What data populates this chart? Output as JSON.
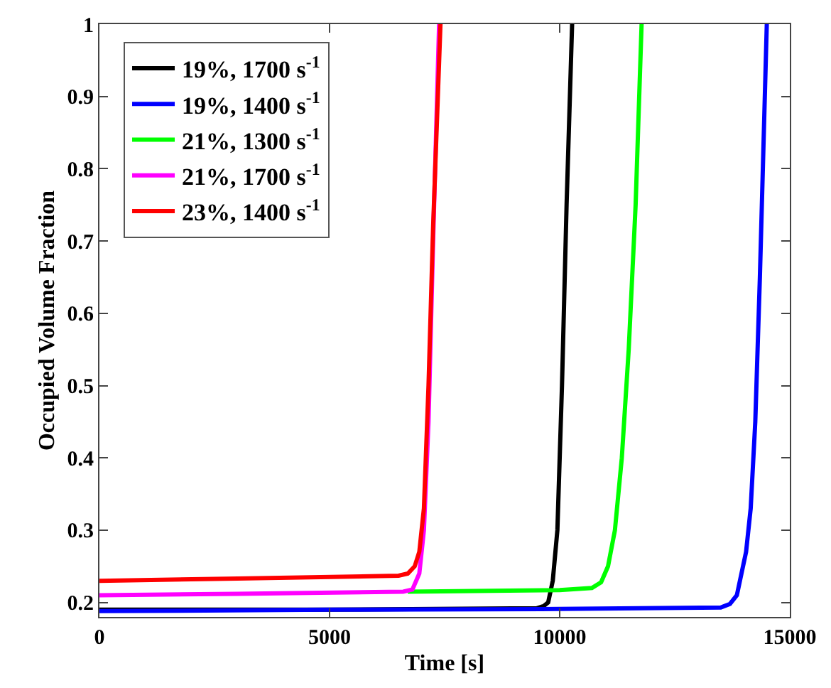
{
  "chart_data": {
    "type": "line",
    "xlabel": "Time [s]",
    "ylabel": "Occupied Volume Fraction",
    "xlim": [
      0,
      15000
    ],
    "xticks": [
      0,
      5000,
      10000,
      15000
    ],
    "ylim": [
      0.18,
      1
    ],
    "yticks": [
      0.2,
      0.3,
      0.4,
      0.5,
      0.6,
      0.7,
      0.8,
      0.9,
      1
    ],
    "legend": "top left",
    "line_style": "solid",
    "series": [
      {
        "name": "19%, 1700 s$^{-1}$",
        "color": "#000000",
        "x": [
          0,
          5000,
          9500,
          9650,
          9750,
          9850,
          9950,
          10050,
          10150,
          10270
        ],
        "values": [
          0.19,
          0.19,
          0.192,
          0.195,
          0.2,
          0.23,
          0.3,
          0.5,
          0.75,
          1
        ]
      },
      {
        "name": "19%, 1400 s$^{-1}$",
        "color": "#0000ff",
        "x": [
          0,
          5000,
          10000,
          13500,
          13700,
          13850,
          13950,
          14050,
          14150,
          14250,
          14350,
          14500
        ],
        "values": [
          0.188,
          0.19,
          0.191,
          0.193,
          0.198,
          0.21,
          0.24,
          0.27,
          0.33,
          0.45,
          0.65,
          1
        ]
      },
      {
        "name": "21%, 1300 s$^{-1}$",
        "color": "#00ff00",
        "x": [
          6700,
          10000,
          10700,
          10900,
          11050,
          11200,
          11350,
          11500,
          11650,
          11780
        ],
        "values": [
          0.215,
          0.217,
          0.22,
          0.228,
          0.25,
          0.3,
          0.4,
          0.55,
          0.75,
          1
        ]
      },
      {
        "name": "21%, 1700 s$^{-1}$",
        "color": "#ff00ff",
        "x": [
          0,
          3000,
          6600,
          6800,
          6950,
          7050,
          7150,
          7250,
          7380
        ],
        "values": [
          0.21,
          0.212,
          0.215,
          0.218,
          0.24,
          0.3,
          0.45,
          0.7,
          1
        ]
      },
      {
        "name": "23%, 1400 s$^{-1}$",
        "color": "#ff0000",
        "x": [
          0,
          3000,
          6500,
          6700,
          6850,
          6950,
          7050,
          7150,
          7250,
          7410
        ],
        "values": [
          0.23,
          0.233,
          0.237,
          0.24,
          0.25,
          0.27,
          0.33,
          0.5,
          0.72,
          1
        ]
      }
    ]
  }
}
